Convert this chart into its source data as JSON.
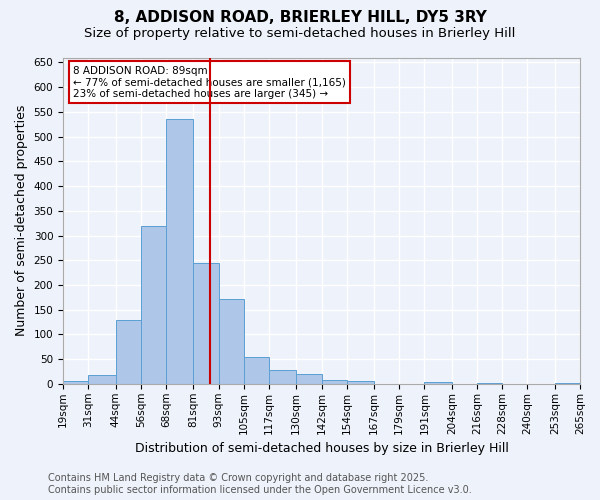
{
  "title": "8, ADDISON ROAD, BRIERLEY HILL, DY5 3RY",
  "subtitle": "Size of property relative to semi-detached houses in Brierley Hill",
  "xlabel": "Distribution of semi-detached houses by size in Brierley Hill",
  "ylabel": "Number of semi-detached properties",
  "footnote1": "Contains HM Land Registry data © Crown copyright and database right 2025.",
  "footnote2": "Contains public sector information licensed under the Open Government Licence v3.0.",
  "bin_labels": [
    "19sqm",
    "31sqm",
    "44sqm",
    "56sqm",
    "68sqm",
    "81sqm",
    "93sqm",
    "105sqm",
    "117sqm",
    "130sqm",
    "142sqm",
    "154sqm",
    "167sqm",
    "179sqm",
    "191sqm",
    "204sqm",
    "216sqm",
    "228sqm",
    "240sqm",
    "253sqm",
    "265sqm"
  ],
  "bin_edges": [
    19,
    31,
    44,
    56,
    68,
    81,
    93,
    105,
    117,
    130,
    142,
    154,
    167,
    179,
    191,
    204,
    216,
    228,
    240,
    253,
    265
  ],
  "bar_heights": [
    5,
    18,
    130,
    320,
    535,
    245,
    172,
    55,
    28,
    20,
    8,
    5,
    0,
    0,
    3,
    0,
    2,
    0,
    0,
    1
  ],
  "bar_color": "#aec6e8",
  "bar_edge_color": "#5a9fd4",
  "vline_x": 89,
  "vline_color": "#cc0000",
  "annotation_line1": "8 ADDISON ROAD: 89sqm",
  "annotation_line2": "← 77% of semi-detached houses are smaller (1,165)",
  "annotation_line3": "23% of semi-detached houses are larger (345) →",
  "annotation_box_color": "#cc0000",
  "ylim": [
    0,
    660
  ],
  "yticks": [
    0,
    50,
    100,
    150,
    200,
    250,
    300,
    350,
    400,
    450,
    500,
    550,
    600,
    650
  ],
  "background_color": "#eef2fa",
  "grid_color": "#ffffff",
  "title_fontsize": 11,
  "subtitle_fontsize": 9.5,
  "axis_label_fontsize": 9,
  "tick_fontsize": 7.5,
  "footnote_fontsize": 7
}
